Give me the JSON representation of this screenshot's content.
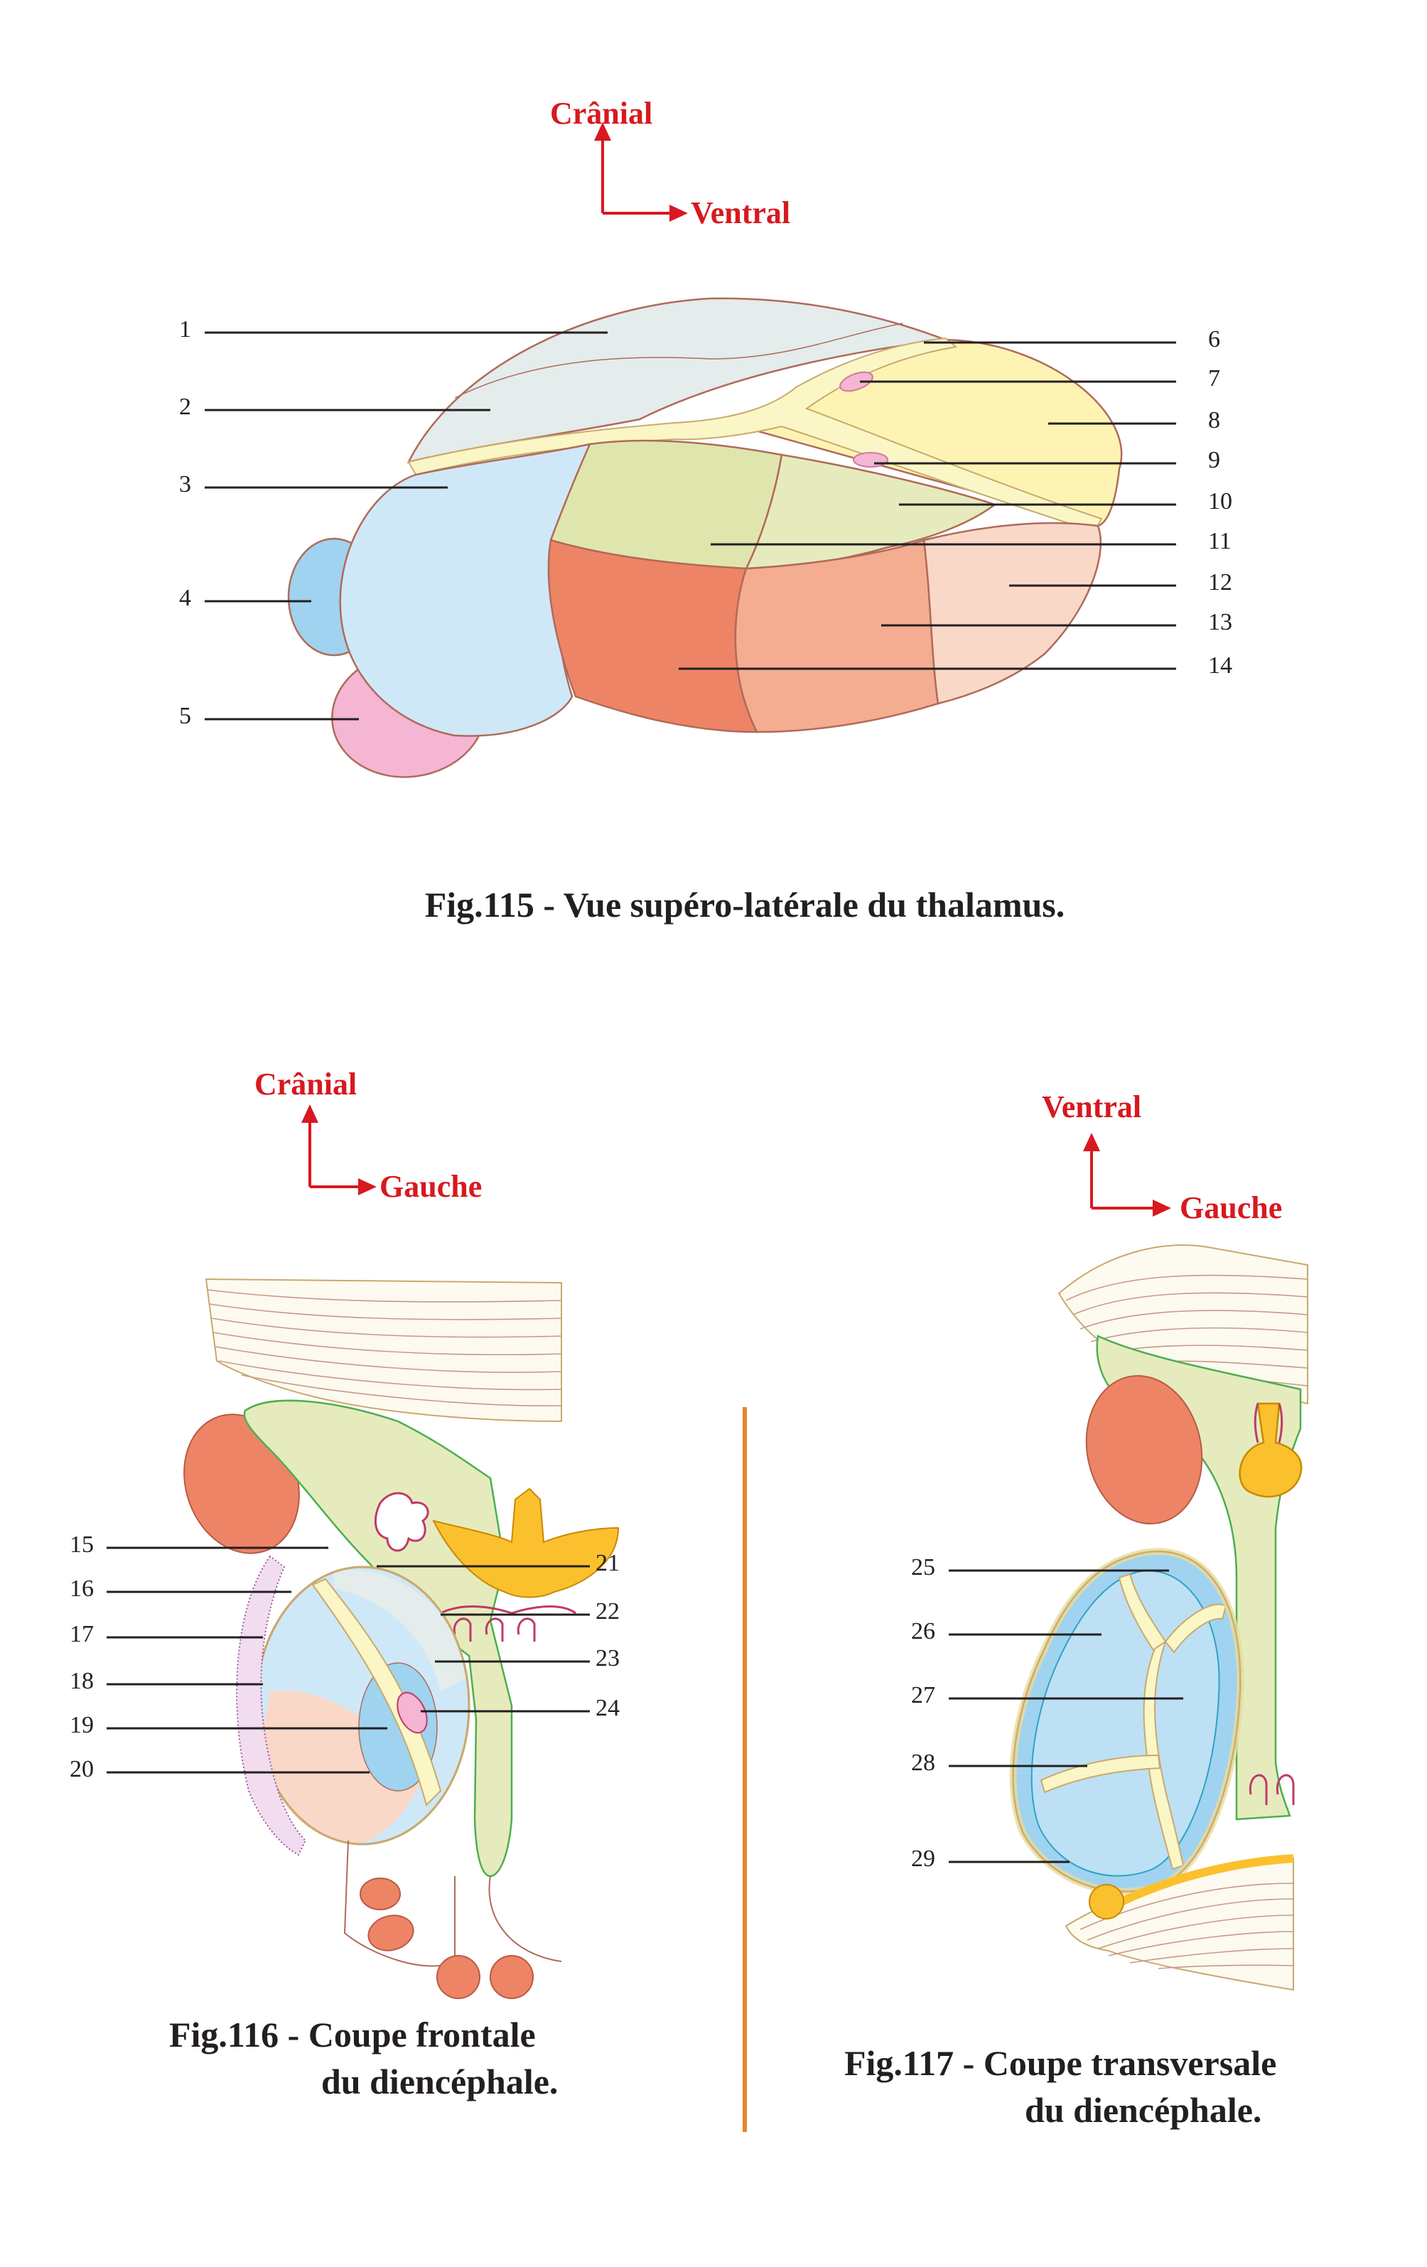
{
  "figures": [
    {
      "id": "fig115",
      "caption": "Fig.115 - Vue supéro-latérale du thalamus.",
      "orientation": {
        "up": "Crânial",
        "right": "Ventral"
      },
      "labels": [
        "1",
        "2",
        "3",
        "4",
        "5",
        "6",
        "7",
        "8",
        "9",
        "10",
        "11",
        "12",
        "13",
        "14"
      ]
    },
    {
      "id": "fig116",
      "caption_line1": "Fig.116 - Coupe frontale",
      "caption_line2": "du diencéphale.",
      "orientation": {
        "up": "Crânial",
        "right": "Gauche"
      },
      "labels": [
        "15",
        "16",
        "17",
        "18",
        "19",
        "20",
        "21",
        "22",
        "23",
        "24"
      ]
    },
    {
      "id": "fig117",
      "caption_line1": "Fig.117 - Coupe transversale",
      "caption_line2": "du diencéphale.",
      "orientation": {
        "up": "Ventral",
        "right": "Gauche"
      },
      "labels": [
        "25",
        "26",
        "27",
        "28",
        "29"
      ]
    }
  ],
  "colors": {
    "text": "#231f20",
    "orientation": "#d71920",
    "divider": "#e8842a",
    "light_blue": "#cfe8f7",
    "blue": "#9fd3f0",
    "pink": "#f4b6d2",
    "red_orange": "#ee8466",
    "salmon": "#f4ad90",
    "peach": "#f9d8c8",
    "olive": "#dfe6ad",
    "pale_olive": "#e6ebbd",
    "yellow": "#fdf4b3",
    "grey_blue": "#e4ecec",
    "yellow_orange": "#fbc02d"
  }
}
